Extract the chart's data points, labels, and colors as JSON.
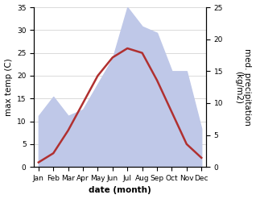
{
  "months": [
    "Jan",
    "Feb",
    "Mar",
    "Apr",
    "May",
    "Jun",
    "Jul",
    "Aug",
    "Sep",
    "Oct",
    "Nov",
    "Dec"
  ],
  "temp": [
    1,
    3,
    8,
    14,
    20,
    24,
    26,
    25,
    19,
    12,
    5,
    2
  ],
  "precip": [
    8,
    11,
    8,
    9,
    13,
    17,
    25,
    22,
    21,
    15,
    15,
    6
  ],
  "temp_color": "#b03030",
  "precip_fill": "#bfc8e8",
  "left_ylim": [
    0,
    35
  ],
  "right_ylim": [
    0,
    25
  ],
  "left_yticks": [
    0,
    5,
    10,
    15,
    20,
    25,
    30,
    35
  ],
  "right_yticks": [
    0,
    5,
    10,
    15,
    20,
    25
  ],
  "xlabel": "date (month)",
  "ylabel_left": "max temp (C)",
  "ylabel_right": "med. precipitation\n(kg/m2)",
  "bg_color": "#ffffff",
  "label_fontsize": 7.5,
  "tick_fontsize": 6.5
}
